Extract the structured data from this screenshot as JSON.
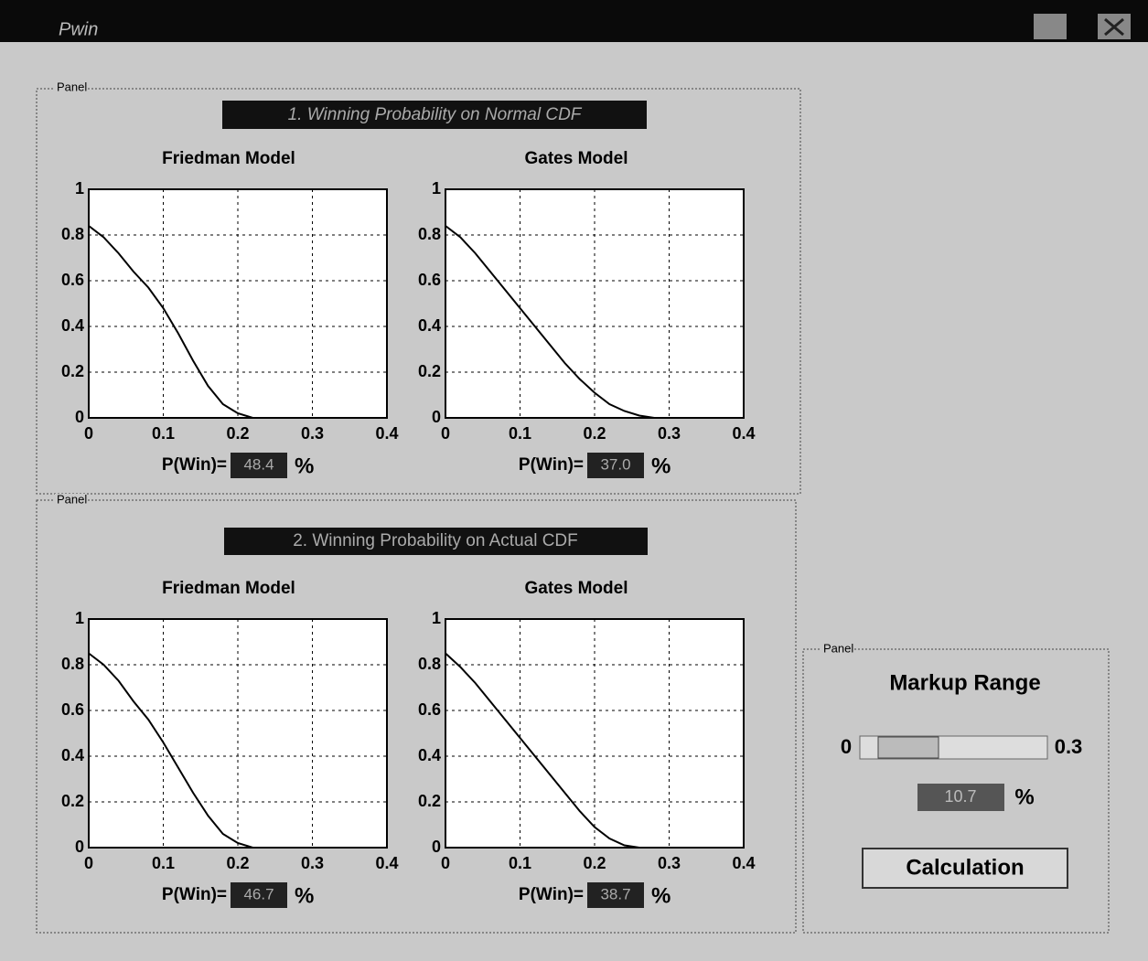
{
  "window": {
    "title": "Pwin"
  },
  "panels": [
    {
      "label": "Panel",
      "heading": "1. Winning Probability on Normal CDF"
    },
    {
      "label": "Panel",
      "heading": "2. Winning Probability on Actual CDF"
    },
    {
      "label": "Panel",
      "heading": "Markup Range",
      "slider_min": "0",
      "slider_max": "0.3",
      "value": "10.7",
      "unit": "%",
      "button": "Calculation"
    }
  ],
  "chart_data": [
    {
      "type": "line",
      "title": "Friedman Model",
      "x": [
        0,
        0.02,
        0.04,
        0.06,
        0.08,
        0.1,
        0.12,
        0.14,
        0.16,
        0.18,
        0.2,
        0.22,
        0.24,
        0.26,
        0.28,
        0.3
      ],
      "series": [
        {
          "color": "#000000",
          "values": [
            0.84,
            0.79,
            0.72,
            0.64,
            0.57,
            0.48,
            0.37,
            0.25,
            0.14,
            0.06,
            0.02,
            0,
            0,
            0,
            0,
            0
          ]
        }
      ],
      "xlim": [
        0,
        0.4
      ],
      "ylim": [
        0,
        1
      ],
      "xticks": [
        0,
        0.1,
        0.2,
        0.3,
        0.4
      ],
      "yticks": [
        0,
        0.2,
        0.4,
        0.6,
        0.8,
        1
      ],
      "grid": true,
      "result": {
        "label": "P(Win)=",
        "value": "48.4",
        "unit": "%"
      }
    },
    {
      "type": "line",
      "title": "Gates Model",
      "x": [
        0,
        0.02,
        0.04,
        0.06,
        0.08,
        0.1,
        0.12,
        0.14,
        0.16,
        0.18,
        0.2,
        0.22,
        0.24,
        0.26,
        0.28,
        0.3
      ],
      "series": [
        {
          "color": "#000000",
          "values": [
            0.84,
            0.79,
            0.72,
            0.64,
            0.56,
            0.48,
            0.4,
            0.32,
            0.24,
            0.17,
            0.11,
            0.06,
            0.03,
            0.01,
            0,
            0
          ]
        }
      ],
      "xlim": [
        0,
        0.4
      ],
      "ylim": [
        0,
        1
      ],
      "xticks": [
        0,
        0.1,
        0.2,
        0.3,
        0.4
      ],
      "yticks": [
        0,
        0.2,
        0.4,
        0.6,
        0.8,
        1
      ],
      "grid": true,
      "result": {
        "label": "P(Win)=",
        "value": "37.0",
        "unit": "%"
      }
    },
    {
      "type": "line",
      "title": "Friedman Model",
      "x": [
        0,
        0.02,
        0.04,
        0.06,
        0.08,
        0.1,
        0.12,
        0.14,
        0.16,
        0.18,
        0.2,
        0.22,
        0.24,
        0.26,
        0.28,
        0.3
      ],
      "series": [
        {
          "color": "#000000",
          "values": [
            0.85,
            0.8,
            0.73,
            0.64,
            0.56,
            0.46,
            0.35,
            0.24,
            0.14,
            0.06,
            0.02,
            0,
            0,
            0,
            0,
            0
          ]
        }
      ],
      "xlim": [
        0,
        0.4
      ],
      "ylim": [
        0,
        1
      ],
      "xticks": [
        0,
        0.1,
        0.2,
        0.3,
        0.4
      ],
      "yticks": [
        0,
        0.2,
        0.4,
        0.6,
        0.8,
        1
      ],
      "grid": true,
      "result": {
        "label": "P(Win)=",
        "value": "46.7",
        "unit": "%"
      }
    },
    {
      "type": "line",
      "title": "Gates Model",
      "x": [
        0,
        0.02,
        0.04,
        0.06,
        0.08,
        0.1,
        0.12,
        0.14,
        0.16,
        0.18,
        0.2,
        0.22,
        0.24,
        0.26,
        0.28,
        0.3
      ],
      "series": [
        {
          "color": "#000000",
          "values": [
            0.85,
            0.79,
            0.72,
            0.64,
            0.56,
            0.48,
            0.4,
            0.32,
            0.24,
            0.16,
            0.09,
            0.04,
            0.01,
            0,
            0,
            0
          ]
        }
      ],
      "xlim": [
        0,
        0.4
      ],
      "ylim": [
        0,
        1
      ],
      "xticks": [
        0,
        0.1,
        0.2,
        0.3,
        0.4
      ],
      "yticks": [
        0,
        0.2,
        0.4,
        0.6,
        0.8,
        1
      ],
      "grid": true,
      "result": {
        "label": "P(Win)=",
        "value": "38.7",
        "unit": "%"
      }
    }
  ]
}
